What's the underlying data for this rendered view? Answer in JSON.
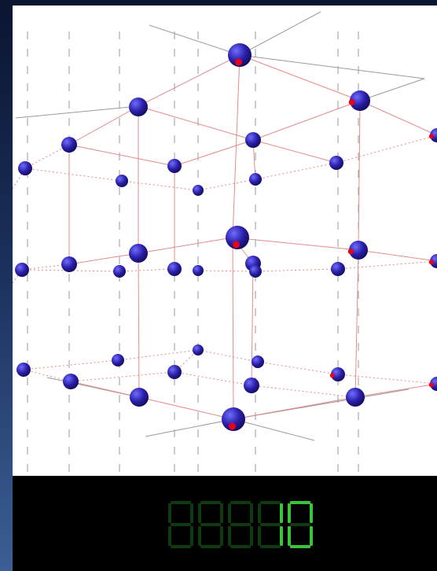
{
  "window": {
    "colors": {
      "background_top": "#0b1530",
      "background_bottom": "#3c5e94",
      "viewport": "#ffffff",
      "control_bar": "#000000"
    }
  },
  "lattice": {
    "atom_color": "#2a1fa8",
    "atom_highlight": "#6f6cff",
    "marker_color": "#e8001c",
    "bond_color": "#e58a8a",
    "axis_color": "#9a9a9a"
  },
  "counter": {
    "digit_count": 5,
    "lit_color": "#39c439",
    "unlit_color": "#0f3a0f"
  }
}
